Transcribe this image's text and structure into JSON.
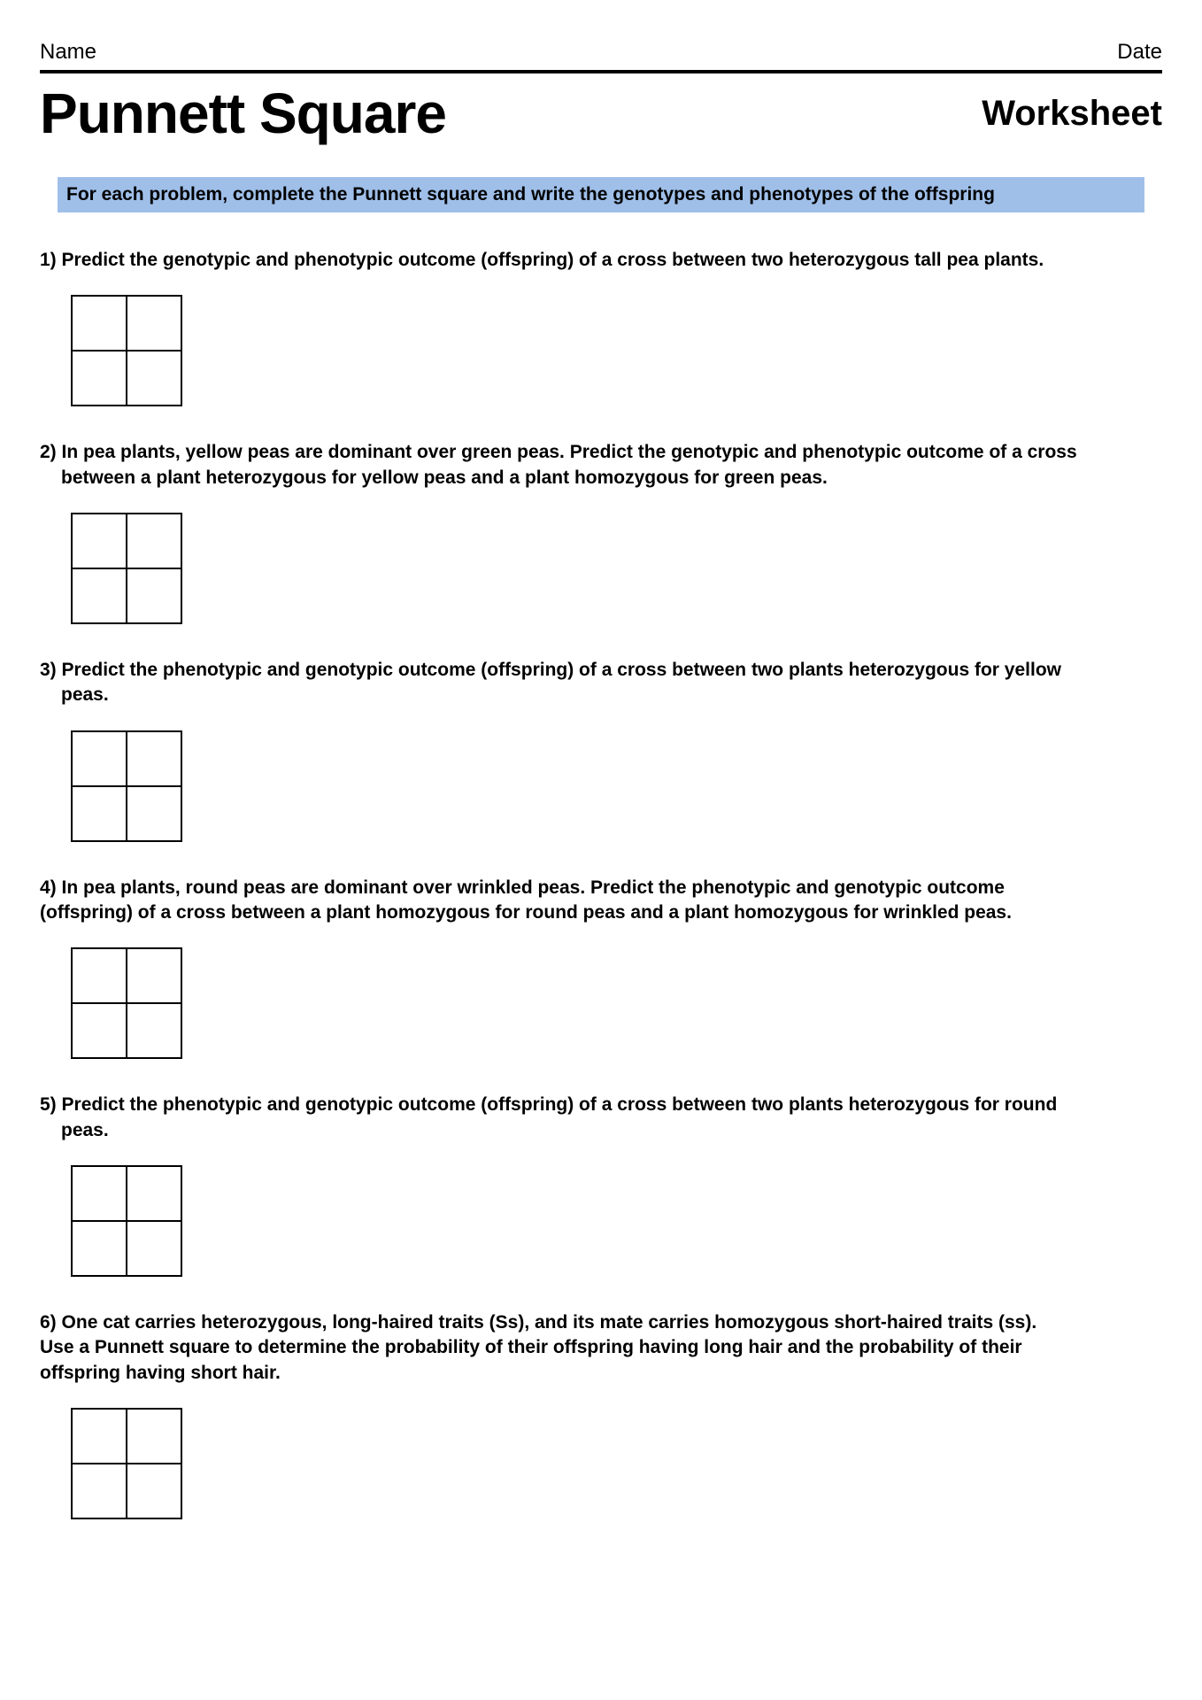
{
  "header": {
    "name_label": "Name",
    "date_label": "Date"
  },
  "title": {
    "main": "Punnett Square",
    "sub": "Worksheet"
  },
  "instructions": "For each problem, complete the Punnett square and write the genotypes and phenotypes of the offspring",
  "problems": [
    {
      "number": "1)",
      "text": "Predict the genotypic and phenotypic outcome (offspring) of a cross between two heterozygous tall pea plants."
    },
    {
      "number": "2)",
      "text_line1": "In pea plants, yellow peas are dominant over green peas. Predict the genotypic and phenotypic outcome of a cross",
      "text_line2": "between a plant heterozygous for yellow peas and a plant homozygous for green peas."
    },
    {
      "number": "3)",
      "text_line1": "Predict the phenotypic and genotypic outcome (offspring) of a cross between two plants heterozygous for yellow",
      "text_line2": "peas."
    },
    {
      "number": "4)",
      "text_line1": "In pea plants, round peas are dominant over wrinkled peas. Predict the phenotypic and genotypic outcome",
      "text_line2": "(offspring) of a cross between a plant homozygous for round peas and a plant homozygous for wrinkled peas."
    },
    {
      "number": "5)",
      "text_line1": "Predict the phenotypic and genotypic outcome (offspring) of a cross between two plants heterozygous for round",
      "text_line2": "peas."
    },
    {
      "number": "6)",
      "text_line1": "One cat carries heterozygous, long-haired traits (Ss), and its mate carries homozygous short-haired traits (ss).",
      "text_line2": "Use a Punnett square to determine the probability of their offspring having long hair and the probability of their",
      "text_line3": "offspring having short hair."
    }
  ],
  "styling": {
    "background_color": "#ffffff",
    "instruction_bg": "#9fbfe9",
    "border_color": "#000000",
    "text_color": "#000000",
    "main_title_fontsize": 64,
    "sub_title_fontsize": 40,
    "body_fontsize": 21,
    "punnett_cell_size": 62,
    "punnett_border_width": 2,
    "header_rule_width": 4
  }
}
